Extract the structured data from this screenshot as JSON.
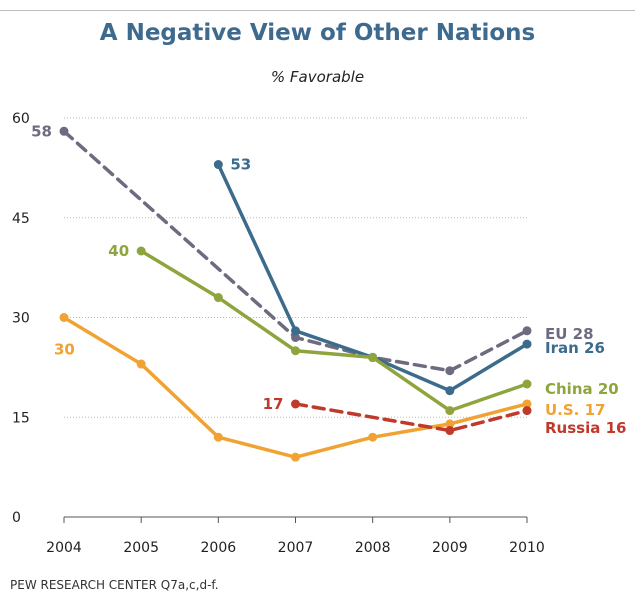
{
  "title": "A Negative View of Other Nations",
  "subtitle": "% Favorable",
  "source": "PEW RESEARCH CENTER Q7a,c,d-f.",
  "chart_data": {
    "type": "line",
    "x": [
      2004,
      2005,
      2006,
      2007,
      2008,
      2009,
      2010
    ],
    "ylim": [
      0,
      60
    ],
    "yticks": [
      0,
      15,
      30,
      45,
      60
    ],
    "grid": true,
    "series": [
      {
        "name": "EU",
        "end_label": "EU 28",
        "color": "#6e6a80",
        "dashed": true,
        "values": [
          58,
          null,
          null,
          27,
          24,
          22,
          28
        ],
        "point_labels": [
          {
            "index": 0,
            "text": "58",
            "side": "left"
          }
        ]
      },
      {
        "name": "Iran",
        "end_label": "Iran 26",
        "color": "#3c6b8c",
        "dashed": false,
        "values": [
          null,
          null,
          53,
          28,
          24,
          19,
          26
        ],
        "point_labels": [
          {
            "index": 2,
            "text": "53",
            "side": "right"
          }
        ]
      },
      {
        "name": "China",
        "end_label": "China 20",
        "color": "#8ea53e",
        "dashed": false,
        "values": [
          null,
          40,
          33,
          25,
          24,
          16,
          20
        ],
        "point_labels": [
          {
            "index": 1,
            "text": "40",
            "side": "left"
          }
        ]
      },
      {
        "name": "U.S.",
        "end_label": "U.S. 17",
        "color": "#f0a332",
        "dashed": false,
        "values": [
          30,
          23,
          12,
          9,
          12,
          14,
          17
        ],
        "point_labels": [
          {
            "index": 0,
            "text": "30",
            "side": "below-right"
          }
        ]
      },
      {
        "name": "Russia",
        "end_label": "Russia 16",
        "color": "#c0392b",
        "dashed": true,
        "values": [
          null,
          null,
          null,
          17,
          null,
          13,
          16
        ],
        "point_labels": [
          {
            "index": 3,
            "text": "17",
            "side": "left"
          }
        ]
      }
    ]
  }
}
